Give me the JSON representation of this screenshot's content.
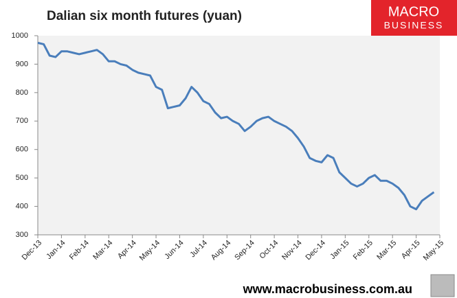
{
  "chart_data": {
    "type": "line",
    "title": "Dalian six month futures (yuan)",
    "logo": [
      "MACRO",
      "BUSINESS"
    ],
    "footer": "www.macrobusiness.com.au",
    "categories": [
      "Dec-13",
      null,
      null,
      null,
      "Jan-14",
      null,
      null,
      null,
      "Feb-14",
      null,
      null,
      null,
      "Mar-14",
      null,
      null,
      null,
      "Apr-14",
      null,
      null,
      null,
      "May-14",
      null,
      null,
      null,
      "Jun-14",
      null,
      null,
      null,
      "Jul-14",
      null,
      null,
      null,
      "Aug-14",
      null,
      null,
      null,
      "Sep-14",
      null,
      null,
      null,
      "Oct-14",
      null,
      null,
      null,
      "Nov-14",
      null,
      null,
      null,
      "Dec-14",
      null,
      null,
      null,
      "Jan-15",
      null,
      null,
      null,
      "Feb-15",
      null,
      null,
      null,
      "Mar-15",
      null,
      null,
      null,
      "Apr-15",
      null,
      null,
      null,
      "May-15"
    ],
    "series": [
      {
        "name": "Dalian six month futures",
        "color": "#4a7ebb",
        "values": [
          975,
          970,
          930,
          925,
          945,
          945,
          940,
          935,
          940,
          945,
          950,
          935,
          910,
          910,
          900,
          895,
          880,
          870,
          865,
          860,
          820,
          810,
          745,
          750,
          755,
          780,
          820,
          800,
          770,
          760,
          730,
          710,
          715,
          700,
          690,
          665,
          680,
          700,
          710,
          715,
          700,
          690,
          680,
          665,
          640,
          610,
          570,
          560,
          555,
          580,
          570,
          520,
          500,
          480,
          470,
          480,
          500,
          510,
          490,
          490,
          480,
          465,
          440,
          400,
          390,
          420,
          435,
          450,
          null
        ]
      }
    ],
    "ylim": [
      300,
      1000
    ],
    "yticks": [
      300,
      400,
      500,
      600,
      700,
      800,
      900,
      1000
    ]
  }
}
